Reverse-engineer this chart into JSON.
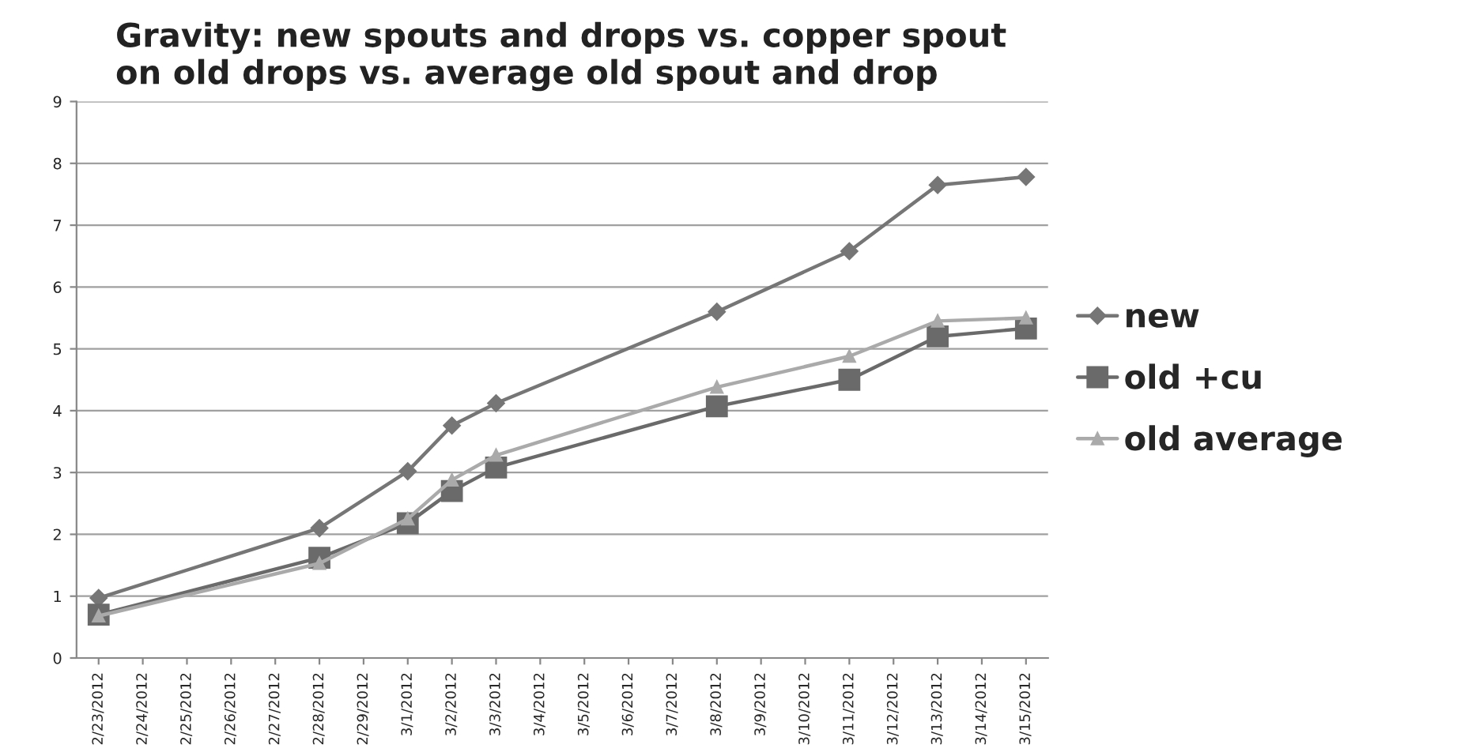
{
  "chart_data": {
    "type": "line",
    "title": "Gravity: new spouts and drops vs. copper spout\non old drops vs. average old spout and drop",
    "x": [
      "2012-02-23",
      "2012-02-28",
      "2012-03-01",
      "2012-03-02",
      "2012-03-03",
      "2012-03-08",
      "2012-03-11",
      "2012-03-13",
      "2012-03-15"
    ],
    "series": [
      {
        "name": "new",
        "color": "#767676",
        "marker": "diamond",
        "values": [
          0.97,
          2.1,
          3.02,
          3.76,
          4.12,
          5.6,
          6.58,
          7.65,
          7.78
        ]
      },
      {
        "name": "old +cu",
        "color": "#6a6a6a",
        "marker": "square",
        "values": [
          0.7,
          1.62,
          2.18,
          2.7,
          3.08,
          4.07,
          4.5,
          5.2,
          5.33
        ]
      },
      {
        "name": "old average",
        "color": "#aaaaaa",
        "marker": "triangle",
        "values": [
          0.68,
          1.53,
          2.25,
          2.88,
          3.28,
          4.38,
          4.88,
          5.45,
          5.5
        ]
      }
    ],
    "xlim": [
      "2012-02-22T12:00",
      "2012-03-15T12:00"
    ],
    "xticks": [
      {
        "value": "2012-02-23",
        "label": "2/23/2012"
      },
      {
        "value": "2012-02-24",
        "label": "2/24/2012"
      },
      {
        "value": "2012-02-25",
        "label": "2/25/2012"
      },
      {
        "value": "2012-02-26",
        "label": "2/26/2012"
      },
      {
        "value": "2012-02-27",
        "label": "2/27/2012"
      },
      {
        "value": "2012-02-28",
        "label": "2/28/2012"
      },
      {
        "value": "2012-02-29",
        "label": "2/29/2012"
      },
      {
        "value": "2012-03-01",
        "label": "3/1/2012"
      },
      {
        "value": "2012-03-02",
        "label": "3/2/2012"
      },
      {
        "value": "2012-03-03",
        "label": "3/3/2012"
      },
      {
        "value": "2012-03-04",
        "label": "3/4/2012"
      },
      {
        "value": "2012-03-05",
        "label": "3/5/2012"
      },
      {
        "value": "2012-03-06",
        "label": "3/6/2012"
      },
      {
        "value": "2012-03-07",
        "label": "3/7/2012"
      },
      {
        "value": "2012-03-08",
        "label": "3/8/2012"
      },
      {
        "value": "2012-03-09",
        "label": "3/9/2012"
      },
      {
        "value": "2012-03-10",
        "label": "3/10/2012"
      },
      {
        "value": "2012-03-11",
        "label": "3/11/2012"
      },
      {
        "value": "2012-03-12",
        "label": "3/12/2012"
      },
      {
        "value": "2012-03-13",
        "label": "3/13/2012"
      },
      {
        "value": "2012-03-14",
        "label": "3/14/2012"
      },
      {
        "value": "2012-03-15",
        "label": "3/15/2012"
      }
    ],
    "ylim": [
      0,
      9
    ],
    "yticks": [
      0,
      1,
      2,
      3,
      4,
      5,
      6,
      7,
      8,
      9
    ],
    "grid": "y",
    "legend": "right",
    "line_style": "solid"
  }
}
